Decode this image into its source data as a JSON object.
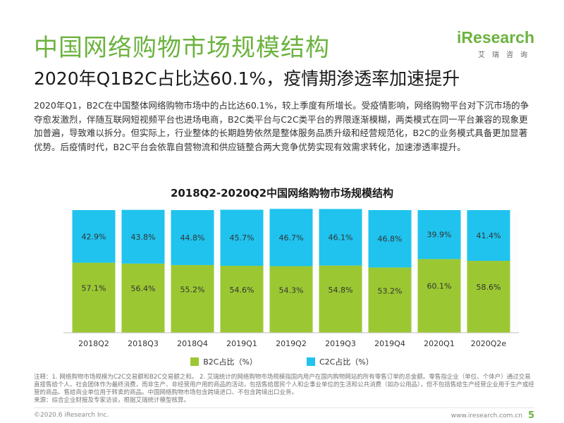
{
  "header": {
    "title": "中国网络购物市场规模结构",
    "subtitle": "2020年Q1B2C占比达60.1%，疫情期渗透率加速提升",
    "logo_text": "iResearch",
    "logo_sub": "艾瑞咨询"
  },
  "body_text": "2020年Q1，B2C在中国整体网络购物市场中的占比达60.1%，较上季度有所增长。受疫情影响，网络购物平台对下沉市场的争夺愈发激烈，伴随互联网短视频平台也进场电商，B2C类平台与C2C类平台的界限逐渐模糊，两类模式在同一平台兼容的现象更加普遍，导致难以拆分。但实际上，行业整体的长期趋势依然是整体服务品质升级和经营规范化，B2C的业务模式具备更加显著优势。后疫情时代，B2C平台会依靠自营物流和供应链整合两大竞争优势实现有效需求转化，加速渗透率提升。",
  "chart_data": {
    "type": "bar",
    "stacked": true,
    "title": "2018Q2-2020Q2中国网络购物市场规模结构",
    "categories": [
      "2018Q2",
      "2018Q3",
      "2018Q4",
      "2019Q1",
      "2019Q2",
      "2019Q3",
      "2019Q4",
      "2020Q1",
      "2020Q2e"
    ],
    "series": [
      {
        "name": "B2C占比（%）",
        "color": "#9bc832",
        "values": [
          57.1,
          56.4,
          55.2,
          54.6,
          54.3,
          54.8,
          53.2,
          60.1,
          58.6
        ]
      },
      {
        "name": "C2C占比（%）",
        "color": "#1fc3ee",
        "values": [
          42.9,
          43.8,
          44.8,
          45.7,
          46.7,
          46.1,
          46.8,
          39.9,
          41.4
        ]
      }
    ],
    "ylim": [
      0,
      100
    ],
    "legend": "bottom"
  },
  "notes": "注释：1. 网络购物市场规模为C2C交易额和B2C交易额之和。 2. 艾瑞统计的网络购物市场规模指国内用户在国内购物网站的所有零售订单的总金额。零售指企业（单位、个体户）通过交易直接售给个人、社会团体作为最终消费，而非生产、非经营用户用的商品的活动，包括售给居民个人和企事业单位的生活和公共消费（如办公用品），但不包括售给生产经营企业用于生产或经营的商品、售给商业单位用于转卖的商品。中国网络购物市场包含跨境进口、不包含跨境出口业务。",
  "source": "来源：综合企业财报及专家访谈，根据艾瑞统计模型核算。",
  "footer": {
    "copyright": "©2020.6 iResearch Inc.",
    "website": "www.iresearch.com.cn",
    "page": "5"
  }
}
